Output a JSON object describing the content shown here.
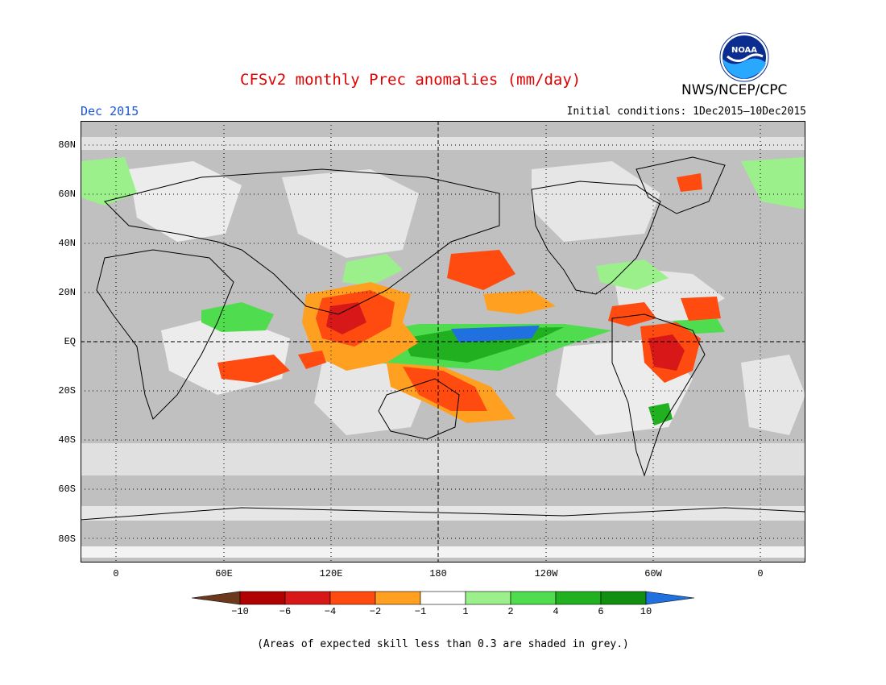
{
  "header": {
    "title": "CFSv2 monthly Prec anomalies (mm/day)",
    "agency": "NWS/NCEP/CPC",
    "logo_text": "NOAA",
    "month": "Dec 2015",
    "initial_conditions": "Initial conditions: 1Dec2015–10Dec2015"
  },
  "map": {
    "lat_labels": [
      "80N",
      "60N",
      "40N",
      "20N",
      "EQ",
      "20S",
      "40S",
      "60S",
      "80S"
    ],
    "lon_labels": [
      "0",
      "60E",
      "120E",
      "180",
      "120W",
      "60W",
      "0"
    ],
    "background_color": "#c0c0c0"
  },
  "legend": {
    "labels": [
      "−10",
      "−6",
      "−4",
      "−2",
      "−1",
      "1",
      "2",
      "4",
      "6",
      "10"
    ],
    "colors": [
      "#6b3a1e",
      "#b00000",
      "#d81818",
      "#ff4a10",
      "#ffa020",
      "#ffffff",
      "#9cf08c",
      "#4fdc4f",
      "#20b020",
      "#108f10",
      "#2070e0"
    ]
  },
  "footnote": "(Areas of expected skill less than 0.3 are shaded in grey.)"
}
